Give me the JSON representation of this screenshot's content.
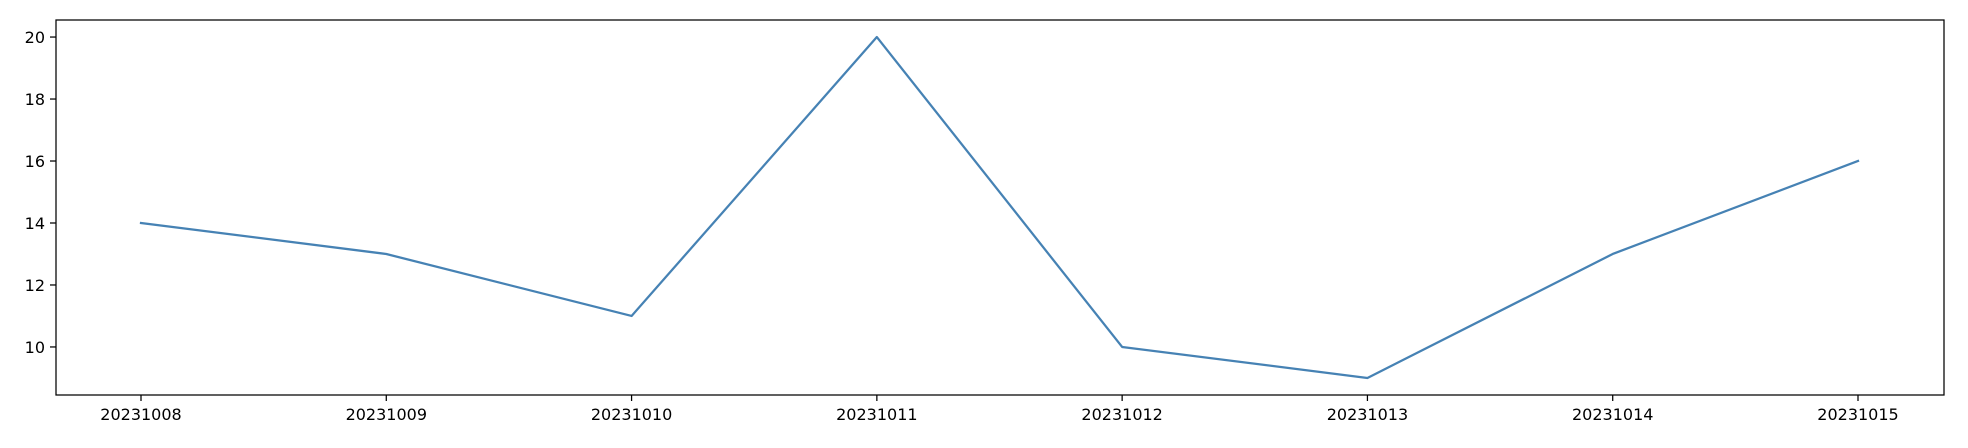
{
  "chart_data": {
    "type": "line",
    "title": "",
    "xlabel": "",
    "ylabel": "",
    "categories": [
      "20231008",
      "20231009",
      "20231010",
      "20231011",
      "20231012",
      "20231013",
      "20231014",
      "20231015"
    ],
    "series": [
      {
        "values": [
          14,
          13,
          11,
          20,
          10,
          9,
          13,
          16
        ],
        "color": "#4682b4"
      }
    ],
    "ylim": [
      8.45,
      20.55
    ],
    "yticks": [
      10,
      12,
      14,
      16,
      18,
      20
    ],
    "grid": false,
    "legend": "none"
  }
}
